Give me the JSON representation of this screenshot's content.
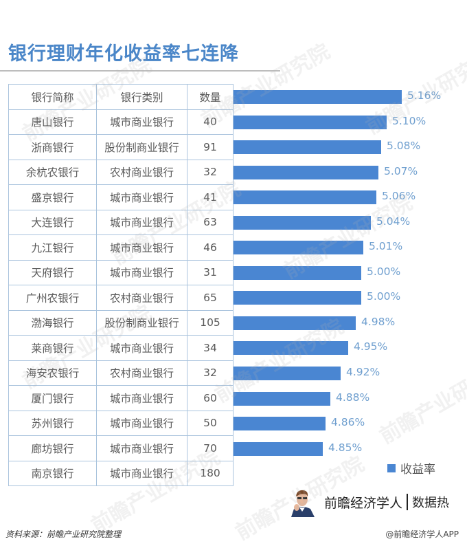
{
  "header": {
    "title": "银行理财年化收益率七连降"
  },
  "table": {
    "columns": [
      "银行简称",
      "银行类别",
      "数量"
    ],
    "rows": [
      {
        "name": "唐山银行",
        "type": "城市商业银行",
        "count": "40"
      },
      {
        "name": "浙商银行",
        "type": "股份制商业银行",
        "count": "91"
      },
      {
        "name": "余杭农银行",
        "type": "农村商业银行",
        "count": "32"
      },
      {
        "name": "盛京银行",
        "type": "城市商业银行",
        "count": "41"
      },
      {
        "name": "大连银行",
        "type": "城市商业银行",
        "count": "63"
      },
      {
        "name": "九江银行",
        "type": "城市商业银行",
        "count": "46"
      },
      {
        "name": "天府银行",
        "type": "城市商业银行",
        "count": "31"
      },
      {
        "name": "广州农银行",
        "type": "农村商业银行",
        "count": "65"
      },
      {
        "name": "渤海银行",
        "type": "股份制商业银行",
        "count": "105"
      },
      {
        "name": "莱商银行",
        "type": "城市商业银行",
        "count": "34"
      },
      {
        "name": "海安农银行",
        "type": "农村商业银行",
        "count": "32"
      },
      {
        "name": "厦门银行",
        "type": "城市商业银行",
        "count": "60"
      },
      {
        "name": "苏州银行",
        "type": "城市商业银行",
        "count": "50"
      },
      {
        "name": "廊坊银行",
        "type": "城市商业银行",
        "count": "70"
      },
      {
        "name": "南京银行",
        "type": "城市商业银行",
        "count": "180"
      }
    ]
  },
  "legend": {
    "label": "收益率",
    "color": "#4a86d2"
  },
  "brand": {
    "name": "前瞻经济学人",
    "tag": "数据热"
  },
  "footer": {
    "source": "资料来源：前瞻产业研究院整理",
    "credit": "@前瞻经济学人APP"
  },
  "watermark": "前瞻产业研究院",
  "colors": {
    "title": "#4a86c8",
    "bar": "#4a86d2",
    "bar_label": "#6f9fcf",
    "table_border": "#a9c3dd"
  },
  "chart_data": {
    "type": "bar",
    "orientation": "horizontal",
    "title": "银行理财年化收益率七连降",
    "categories": [
      "唐山银行",
      "浙商银行",
      "余杭农银行",
      "盛京银行",
      "大连银行",
      "九江银行",
      "天府银行",
      "广州农银行",
      "渤海银行",
      "莱商银行",
      "海安农银行",
      "厦门银行",
      "苏州银行",
      "廊坊银行",
      "南京银行"
    ],
    "series": [
      {
        "name": "收益率",
        "values": [
          5.16,
          5.1,
          5.08,
          5.07,
          5.06,
          5.04,
          5.01,
          5.0,
          5.0,
          4.98,
          4.95,
          4.92,
          4.88,
          4.86,
          4.85
        ]
      }
    ],
    "value_labels": [
      "5.16%",
      "5.10%",
      "5.08%",
      "5.07%",
      "5.06%",
      "5.04%",
      "5.01%",
      "5.00%",
      "5.00%",
      "4.98%",
      "4.95%",
      "4.92%",
      "4.88%",
      "4.86%",
      "4.85%"
    ],
    "xlim": [
      4.5,
      5.2
    ],
    "unit": "%",
    "grid": false,
    "legend_position": "bottom-right",
    "companion_table": {
      "columns": [
        "银行简称",
        "银行类别",
        "数量"
      ],
      "types": [
        "城市商业银行",
        "股份制商业银行",
        "农村商业银行",
        "城市商业银行",
        "城市商业银行",
        "城市商业银行",
        "城市商业银行",
        "农村商业银行",
        "股份制商业银行",
        "城市商业银行",
        "农村商业银行",
        "城市商业银行",
        "城市商业银行",
        "城市商业银行",
        "城市商业银行"
      ],
      "counts": [
        40,
        91,
        32,
        41,
        63,
        46,
        31,
        65,
        105,
        34,
        32,
        60,
        50,
        70,
        180
      ]
    }
  }
}
